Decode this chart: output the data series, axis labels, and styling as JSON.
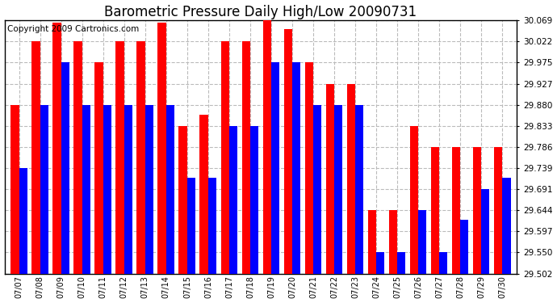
{
  "title": "Barometric Pressure Daily High/Low 20090731",
  "copyright": "Copyright 2009 Cartronics.com",
  "dates": [
    "07/07",
    "07/08",
    "07/09",
    "07/10",
    "07/11",
    "07/12",
    "07/13",
    "07/14",
    "07/15",
    "07/16",
    "07/17",
    "07/18",
    "07/19",
    "07/20",
    "07/21",
    "07/22",
    "07/23",
    "07/24",
    "07/25",
    "07/26",
    "07/27",
    "07/28",
    "07/29",
    "07/30"
  ],
  "highs": [
    29.88,
    30.022,
    30.063,
    30.022,
    29.975,
    30.022,
    30.022,
    30.063,
    29.833,
    29.857,
    30.022,
    30.022,
    30.069,
    30.05,
    29.975,
    29.927,
    29.927,
    29.644,
    29.644,
    29.833,
    29.786,
    29.786,
    29.786,
    29.786
  ],
  "lows": [
    29.739,
    29.88,
    29.975,
    29.88,
    29.88,
    29.88,
    29.88,
    29.88,
    29.716,
    29.716,
    29.833,
    29.833,
    29.975,
    29.975,
    29.88,
    29.88,
    29.88,
    29.55,
    29.55,
    29.644,
    29.55,
    29.622,
    29.691,
    29.716
  ],
  "ymin": 29.502,
  "ymax": 30.069,
  "yticks": [
    29.502,
    29.55,
    29.597,
    29.644,
    29.691,
    29.739,
    29.786,
    29.833,
    29.88,
    29.927,
    29.975,
    30.022,
    30.069
  ],
  "bar_color_high": "#FF0000",
  "bar_color_low": "#0000FF",
  "background_color": "#FFFFFF",
  "grid_color": "#BBBBBB",
  "title_fontsize": 12,
  "copyright_fontsize": 7.5
}
